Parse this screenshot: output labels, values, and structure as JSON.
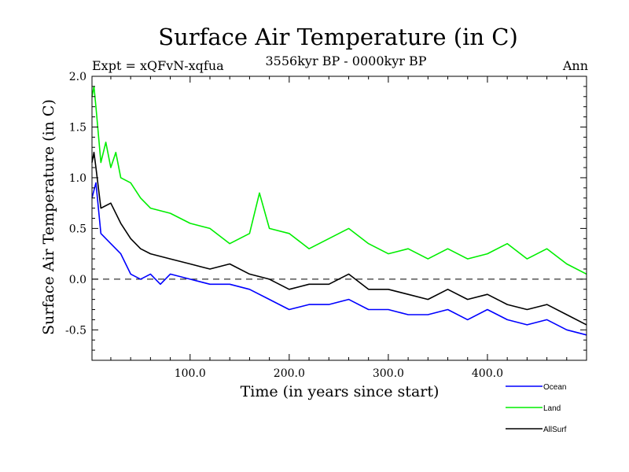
{
  "chart_data": {
    "type": "line",
    "title": "Surface Air Temperature (in C)",
    "subtitle": "3556kyr BP - 0000kyr BP",
    "expt_label": "Expt = xQFvN-xqfua",
    "season_label": "Ann",
    "xlabel": "Time (in years since start)",
    "ylabel": "Surface Air Temperature (in C)",
    "xlim": [
      1,
      500
    ],
    "ylim": [
      -0.8,
      2.0
    ],
    "x_ticks": [
      100,
      200,
      300,
      400
    ],
    "x_tick_labels": [
      "100.0",
      "200.0",
      "300.0",
      "400.0"
    ],
    "y_ticks": [
      -0.5,
      0.0,
      0.5,
      1.0,
      1.5,
      2.0
    ],
    "y_tick_labels": [
      "-0.5",
      "0.0",
      "0.5",
      "1.0",
      "1.5",
      "2.0"
    ],
    "zero_line": 0.0,
    "legend_position": "bottom-right, below plot",
    "series": [
      {
        "name": "Ocean",
        "color": "#0000ff",
        "x": [
          1,
          5,
          10,
          20,
          30,
          40,
          50,
          60,
          70,
          80,
          100,
          120,
          140,
          160,
          180,
          200,
          220,
          240,
          260,
          280,
          300,
          320,
          340,
          360,
          380,
          400,
          420,
          440,
          460,
          480,
          500
        ],
        "values": [
          0.8,
          0.95,
          0.45,
          0.35,
          0.25,
          0.05,
          0.0,
          0.05,
          -0.05,
          0.05,
          0.0,
          -0.05,
          -0.05,
          -0.1,
          -0.2,
          -0.3,
          -0.25,
          -0.25,
          -0.2,
          -0.3,
          -0.3,
          -0.35,
          -0.35,
          -0.3,
          -0.4,
          -0.3,
          -0.4,
          -0.45,
          -0.4,
          -0.5,
          -0.55
        ]
      },
      {
        "name": "Land",
        "color": "#00ee00",
        "x": [
          1,
          3,
          5,
          10,
          15,
          20,
          25,
          30,
          40,
          50,
          60,
          80,
          100,
          120,
          140,
          160,
          170,
          180,
          200,
          220,
          240,
          260,
          280,
          300,
          320,
          340,
          360,
          380,
          400,
          420,
          440,
          460,
          480,
          500
        ],
        "values": [
          1.8,
          1.9,
          1.7,
          1.15,
          1.35,
          1.1,
          1.25,
          1.0,
          0.95,
          0.8,
          0.7,
          0.65,
          0.55,
          0.5,
          0.35,
          0.45,
          0.85,
          0.5,
          0.45,
          0.3,
          0.4,
          0.5,
          0.35,
          0.25,
          0.3,
          0.2,
          0.3,
          0.2,
          0.25,
          0.35,
          0.2,
          0.3,
          0.15,
          0.05
        ]
      },
      {
        "name": "AllSurf",
        "color": "#000000",
        "x": [
          1,
          3,
          5,
          10,
          20,
          30,
          40,
          50,
          60,
          80,
          100,
          120,
          140,
          160,
          180,
          200,
          220,
          240,
          260,
          280,
          300,
          320,
          340,
          360,
          380,
          400,
          420,
          440,
          460,
          480,
          500
        ],
        "values": [
          1.15,
          1.25,
          1.1,
          0.7,
          0.75,
          0.55,
          0.4,
          0.3,
          0.25,
          0.2,
          0.15,
          0.1,
          0.15,
          0.05,
          0.0,
          -0.1,
          -0.05,
          -0.05,
          0.05,
          -0.1,
          -0.1,
          -0.15,
          -0.2,
          -0.1,
          -0.2,
          -0.15,
          -0.25,
          -0.3,
          -0.25,
          -0.35,
          -0.45
        ]
      }
    ]
  }
}
